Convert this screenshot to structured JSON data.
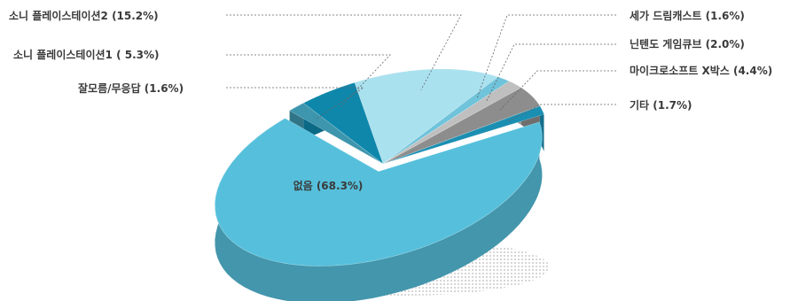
{
  "chart_data": {
    "type": "pie",
    "title": "",
    "slices": [
      {
        "label": "소니 플레이스테이션2 (15.2%)",
        "value": 15.2,
        "color": "#a9e1ef"
      },
      {
        "label": "세가 드림캐스트 (1.6%)",
        "value": 1.6,
        "color": "#6fc3da"
      },
      {
        "label": "닌텐도 게임큐브 (2.0%)",
        "value": 2.0,
        "color": "#bfbfbf"
      },
      {
        "label": "마이크로소프트 X박스 (4.4%)",
        "value": 4.4,
        "color": "#8d8d8d"
      },
      {
        "label": "기타 (1.7%)",
        "value": 1.7,
        "color": "#1b8fb2"
      },
      {
        "label": "없음 (68.3%)",
        "value": 68.3,
        "color": "#56c0dc"
      },
      {
        "label": "잘모름/무응답 (1.6%)",
        "value": 1.6,
        "color": "#3d96ad"
      },
      {
        "label": "소니 플레이스테이션1 ( 5.3%)",
        "value": 5.3,
        "color": "#0e87ab"
      }
    ],
    "legend": "none",
    "data_labels": "outside with leader lines"
  }
}
